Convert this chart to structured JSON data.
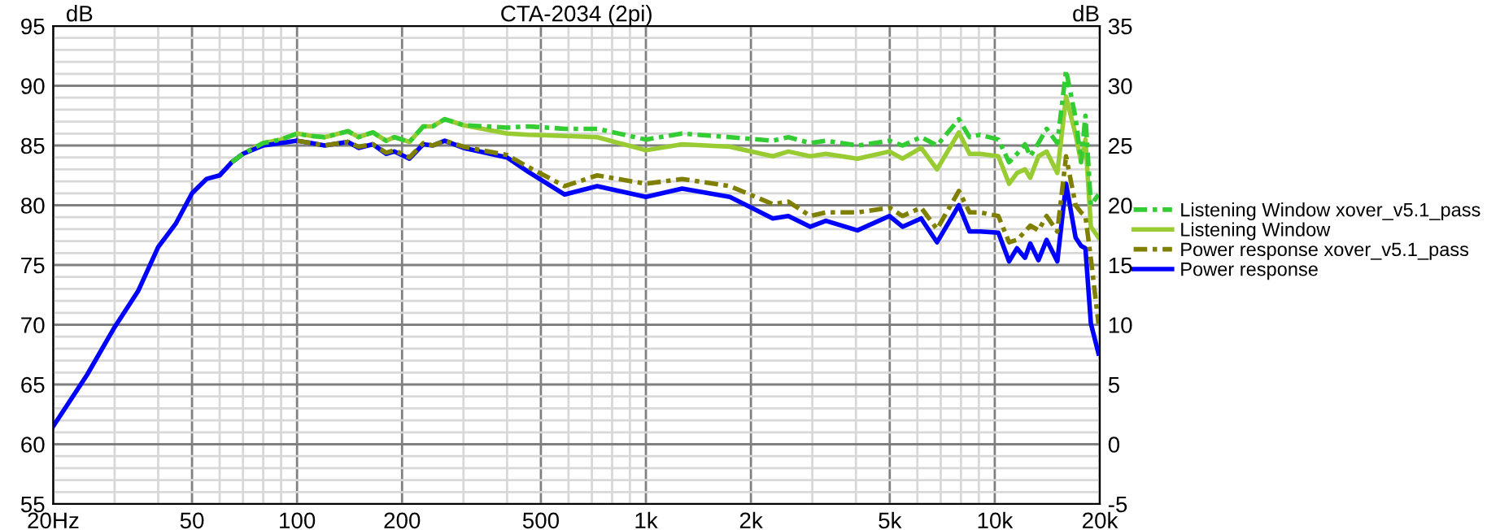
{
  "chart_data": {
    "type": "line",
    "title": "CTA-2034 (2pi)",
    "ylabel": "dB",
    "y2label": "dB",
    "x": [
      20,
      25,
      30,
      35,
      40,
      45,
      50,
      55,
      60,
      65,
      70,
      80,
      90,
      100,
      110,
      120,
      140,
      150,
      165,
      180,
      190,
      210,
      230,
      245,
      265,
      300,
      400,
      460,
      585,
      725,
      1000,
      1270,
      1740,
      2310,
      2560,
      2960,
      3280,
      4040,
      4990,
      5440,
      6150,
      6830,
      7890,
      8470,
      9070,
      10240,
      10990,
      11580,
      12210,
      12640,
      13340,
      14080,
      15110,
      16010,
      17050,
      17680,
      18190,
      18860,
      19830
    ],
    "series": [
      {
        "name": "Listening Window xover_v5.1_pass",
        "color": "#33cc33",
        "line_style": "dashed",
        "values": [
          null,
          null,
          null,
          null,
          null,
          null,
          null,
          null,
          null,
          83.6,
          84.3,
          85.2,
          85.5,
          86.0,
          85.8,
          85.7,
          86.2,
          85.7,
          86.1,
          85.4,
          85.7,
          85.3,
          86.6,
          86.6,
          87.2,
          86.7,
          86.5,
          86.6,
          86.4,
          86.4,
          85.5,
          86.0,
          85.7,
          85.4,
          85.7,
          85.2,
          85.4,
          85.0,
          85.4,
          85.0,
          85.7,
          85.0,
          87.2,
          85.7,
          85.9,
          85.5,
          83.6,
          84.3,
          85.1,
          84.1,
          85.2,
          86.4,
          85.2,
          91.3,
          87.3,
          83.6,
          87.5,
          80.0,
          80.9
        ]
      },
      {
        "name": "Listening Window",
        "color": "#99cc33",
        "line_style": "solid",
        "values": [
          null,
          null,
          null,
          null,
          null,
          null,
          null,
          null,
          null,
          83.6,
          84.3,
          85.2,
          85.5,
          86.0,
          85.8,
          85.7,
          86.2,
          85.7,
          86.1,
          85.4,
          85.7,
          85.3,
          86.6,
          86.6,
          87.2,
          86.7,
          86.0,
          85.9,
          85.8,
          85.7,
          84.6,
          85.1,
          84.9,
          84.1,
          84.5,
          84.1,
          84.3,
          83.9,
          84.5,
          83.9,
          84.8,
          83.0,
          86.1,
          84.3,
          84.3,
          84.1,
          81.8,
          82.7,
          83.0,
          82.3,
          84.1,
          84.5,
          82.7,
          89.1,
          85.9,
          83.6,
          85.5,
          78.2,
          77.3
        ]
      },
      {
        "name": "Power response xover_v5.1_pass",
        "color": "#808000",
        "line_style": "dashed",
        "values": [
          null,
          null,
          null,
          null,
          null,
          null,
          null,
          null,
          null,
          null,
          null,
          null,
          null,
          85.4,
          85.2,
          85.0,
          85.3,
          84.9,
          85.1,
          84.4,
          84.6,
          84.0,
          85.2,
          85.0,
          85.4,
          84.9,
          84.2,
          83.2,
          81.6,
          82.5,
          81.8,
          82.2,
          81.6,
          80.1,
          80.3,
          79.1,
          79.4,
          79.4,
          79.8,
          79.1,
          79.8,
          78.0,
          81.2,
          79.4,
          79.4,
          79.1,
          76.9,
          77.1,
          77.8,
          78.3,
          77.9,
          79.1,
          77.8,
          84.1,
          80.0,
          79.4,
          79.1,
          75.5,
          70.1
        ]
      },
      {
        "name": "Power response",
        "color": "#0000ff",
        "line_style": "solid",
        "values": [
          61.5,
          65.8,
          69.8,
          72.8,
          76.5,
          78.5,
          81.0,
          82.2,
          82.5,
          83.6,
          84.3,
          85.0,
          85.2,
          85.4,
          85.2,
          85.0,
          85.3,
          84.8,
          85.1,
          84.3,
          84.5,
          83.9,
          85.1,
          85.0,
          85.4,
          84.8,
          84.0,
          82.8,
          80.9,
          81.6,
          80.7,
          81.4,
          80.7,
          78.9,
          79.1,
          78.2,
          78.7,
          77.9,
          79.1,
          78.2,
          78.9,
          76.9,
          80.0,
          77.8,
          77.8,
          77.7,
          75.3,
          76.4,
          75.6,
          76.8,
          75.4,
          77.1,
          75.3,
          81.8,
          77.3,
          76.6,
          76.4,
          70.1,
          67.6
        ]
      }
    ],
    "log": "x",
    "xlim": [
      20,
      20000
    ],
    "xticks": [
      {
        "value": 20,
        "label": "20Hz"
      },
      {
        "value": 30,
        "label": null
      },
      {
        "value": 40,
        "label": null
      },
      50,
      {
        "value": 60,
        "label": null
      },
      {
        "value": 70,
        "label": null
      },
      {
        "value": 80,
        "label": null
      },
      {
        "value": 90,
        "label": null
      },
      100,
      200,
      {
        "value": 300,
        "label": null
      },
      {
        "value": 400,
        "label": null
      },
      500,
      {
        "value": 600,
        "label": null
      },
      {
        "value": 700,
        "label": null
      },
      {
        "value": 800,
        "label": null
      },
      {
        "value": 900,
        "label": null
      },
      {
        "value": 1000,
        "label": "1k"
      },
      {
        "value": 2000,
        "label": "2k"
      },
      {
        "value": 3000,
        "label": null
      },
      {
        "value": 4000,
        "label": null
      },
      {
        "value": 5000,
        "label": "5k"
      },
      {
        "value": 6000,
        "label": null
      },
      {
        "value": 7000,
        "label": null
      },
      {
        "value": 8000,
        "label": null
      },
      {
        "value": 9000,
        "label": null
      },
      {
        "value": 10000,
        "label": "10k"
      },
      {
        "value": 20000,
        "label": "20k"
      }
    ],
    "ylim": [
      55,
      95
    ],
    "yticks": [
      55,
      {
        "value": 56,
        "label": null
      },
      {
        "value": 57,
        "label": null
      },
      {
        "value": 58,
        "label": null
      },
      {
        "value": 59,
        "label": null
      },
      60,
      {
        "value": 61,
        "label": null
      },
      {
        "value": 62,
        "label": null
      },
      {
        "value": 63,
        "label": null
      },
      {
        "value": 64,
        "label": null
      },
      65,
      {
        "value": 66,
        "label": null
      },
      {
        "value": 67,
        "label": null
      },
      {
        "value": 68,
        "label": null
      },
      {
        "value": 69,
        "label": null
      },
      70,
      {
        "value": 71,
        "label": null
      },
      {
        "value": 72,
        "label": null
      },
      {
        "value": 73,
        "label": null
      },
      {
        "value": 74,
        "label": null
      },
      75,
      {
        "value": 76,
        "label": null
      },
      {
        "value": 77,
        "label": null
      },
      {
        "value": 78,
        "label": null
      },
      {
        "value": 79,
        "label": null
      },
      80,
      {
        "value": 81,
        "label": null
      },
      {
        "value": 82,
        "label": null
      },
      {
        "value": 83,
        "label": null
      },
      {
        "value": 84,
        "label": null
      },
      85,
      {
        "value": 86,
        "label": null
      },
      {
        "value": 87,
        "label": null
      },
      {
        "value": 88,
        "label": null
      },
      {
        "value": 89,
        "label": null
      },
      90,
      {
        "value": 91,
        "label": null
      },
      {
        "value": 92,
        "label": null
      },
      {
        "value": 93,
        "label": null
      },
      {
        "value": 94,
        "label": null
      },
      95
    ],
    "y2lim": [
      -5,
      35
    ],
    "y2ticks": [
      -5,
      0,
      5,
      10,
      15,
      20,
      25,
      30,
      35
    ],
    "grid": true,
    "legend": "right",
    "marker": "none"
  }
}
